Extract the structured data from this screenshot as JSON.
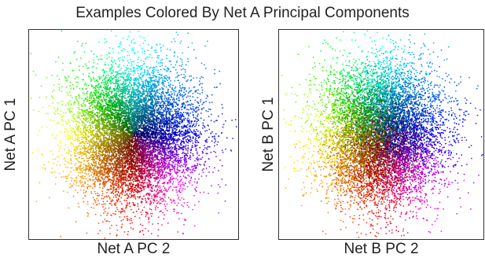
{
  "figure_title": "Examples Colored By Net A Principal Components",
  "chart_data": [
    {
      "type": "scatter",
      "title": "",
      "xlabel": "Net A PC 2",
      "ylabel": "Net A PC 1",
      "ticks": "none",
      "grid": false,
      "legend": "none",
      "coloring": "hue by angle in Net A PC space (red, orange, yellow, green, cyan, blue, magenta), darker toward center",
      "cloud": {
        "n_points": 9000,
        "center_x": 0.0,
        "center_y": 0.0,
        "spread_x": 1.0,
        "spread_y": 1.0
      },
      "xlim": [
        -3.3,
        3.3
      ],
      "ylim": [
        -3.0,
        3.0
      ]
    },
    {
      "type": "scatter",
      "title": "",
      "xlabel": "Net B PC 2",
      "ylabel": "Net B PC 1",
      "ticks": "none",
      "grid": false,
      "legend": "none",
      "coloring": "colored by Net A principal components",
      "cloud": {
        "n_points": 9000,
        "center_x": 0.0,
        "center_y": 0.0,
        "spread_x": 1.0,
        "spread_y": 1.0
      },
      "xlim": [
        -3.3,
        3.3
      ],
      "ylim": [
        -3.0,
        3.0
      ]
    }
  ]
}
